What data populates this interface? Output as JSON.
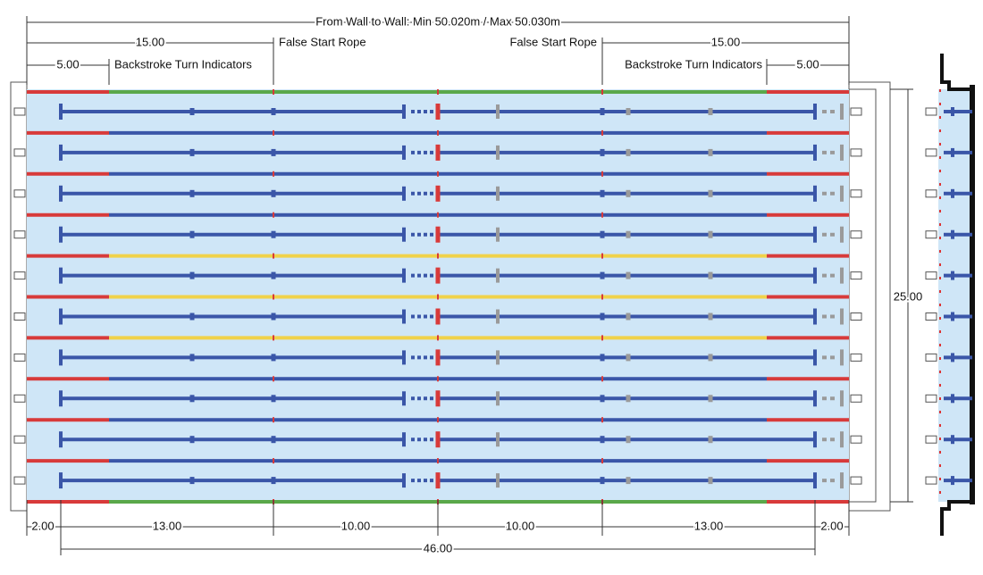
{
  "top_dimension": "From Wall to Wall: Min 50.020m / Max 50.030m",
  "left": {
    "length_15": "15.00",
    "false_start": "False Start Rope",
    "length_5": "5.00",
    "backstroke": "Backstroke Turn Indicators"
  },
  "right": {
    "length_15": "15.00",
    "false_start": "False Start Rope",
    "length_5": "5.00",
    "backstroke": "Backstroke Turn Indicators"
  },
  "width_label": "25.00",
  "bottom_segments": [
    "2.00",
    "13.00",
    "10.00",
    "10.00",
    "13.00",
    "2.00"
  ],
  "total_label": "46.00"
}
